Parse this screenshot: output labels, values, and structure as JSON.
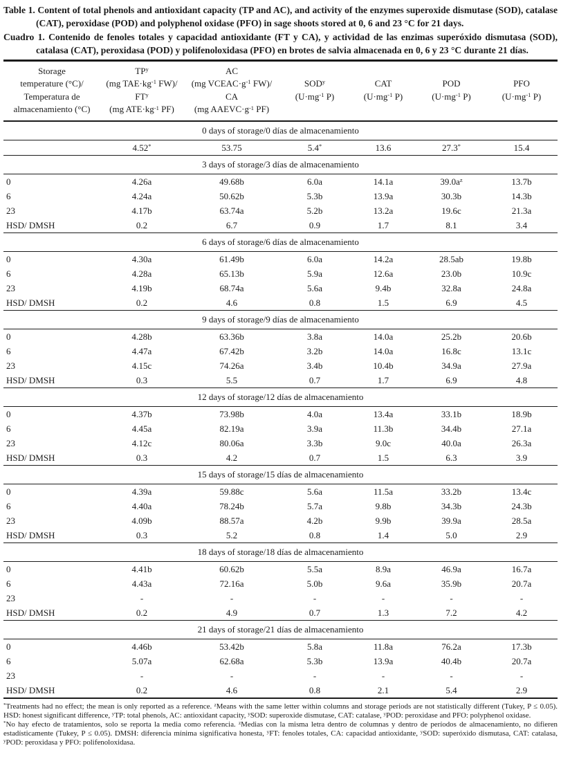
{
  "caption": {
    "en_label": "Table 1.",
    "en_text": "Content of total phenols and antioxidant capacity (TP and AC), and activity of the enzymes superoxide dismutase (SOD), catalase (CAT), peroxidase (POD) and polyphenol oxidase (PFO) in sage shoots stored at 0, 6 and 23 °C for 21 days.",
    "es_label": "Cuadro 1.",
    "es_text": "Contenido de fenoles totales y capacidad antioxidante (FT y CA), y actividad de las enzimas superóxido dismutasa (SOD), catalasa (CAT),  peroxidasa (POD) y polifenoloxidasa (PFO) en brotes de salvia almacenada en 0, 6 y 23 °C durante 21 días."
  },
  "table": {
    "columns": [
      "Storage\ntemperature (°C)/\nTemperatura de\nalmacenamiento (°C)",
      "TP^{y}\n(mg TAE·kg^{-1} FW)/\nFT^{y}\n(mg ATE·kg^{-1} PF)",
      "AC\n(mg VCEAC·g^{-1} FW)/\nCA\n(mg AAEVC·g^{-1} PF)",
      "SOD^{y}\n(U·mg^{-1} P)",
      "CAT\n(U·mg^{-1} P)",
      "POD\n(U·mg^{-1} P)",
      "PFO\n(U·mg^{-1} P)"
    ],
    "sections": [
      {
        "header": "0 days of storage/0 días de almacenamiento",
        "rows": [
          {
            "label": "",
            "values": [
              "4.52^{*}",
              "53.75",
              "5.4^{*}",
              "13.6",
              "27.3^{*}",
              "15.4"
            ]
          }
        ]
      },
      {
        "header": "3 days of storage/3 días de almacenamiento",
        "rows": [
          {
            "label": "0",
            "values": [
              "4.26a",
              "49.68b",
              "6.0a",
              "14.1a",
              "39.0a^{z}",
              "13.7b"
            ]
          },
          {
            "label": "6",
            "values": [
              "4.24a",
              "50.62b",
              "5.3b",
              "13.9a",
              "30.3b",
              "14.3b"
            ]
          },
          {
            "label": "23",
            "values": [
              "4.17b",
              "63.74a",
              "5.2b",
              "13.2a",
              "19.6c",
              "21.3a"
            ]
          },
          {
            "label": "HSD/ DMSH",
            "values": [
              "0.2",
              "6.7",
              "0.9",
              "1.7",
              "8.1",
              "3.4"
            ]
          }
        ]
      },
      {
        "header": "6 days of storage/6 días de almacenamiento",
        "rows": [
          {
            "label": "0",
            "values": [
              "4.30a",
              "61.49b",
              "6.0a",
              "14.2a",
              "28.5ab",
              "19.8b"
            ]
          },
          {
            "label": "6",
            "values": [
              "4.28a",
              "65.13b",
              "5.9a",
              "12.6a",
              "23.0b",
              "10.9c"
            ]
          },
          {
            "label": "23",
            "values": [
              "4.19b",
              "68.74a",
              "5.6a",
              "9.4b",
              "32.8a",
              "24.8a"
            ]
          },
          {
            "label": "HSD/ DMSH",
            "values": [
              "0.2",
              "4.6",
              "0.8",
              "1.5",
              "6.9",
              "4.5"
            ]
          }
        ]
      },
      {
        "header": "9 days of storage/9 días de almacenamiento",
        "rows": [
          {
            "label": "0",
            "values": [
              "4.28b",
              "63.36b",
              "3.8a",
              "14.0a",
              "25.2b",
              "20.6b"
            ]
          },
          {
            "label": "6",
            "values": [
              "4.47a",
              "67.42b",
              "3.2b",
              "14.0a",
              "16.8c",
              "13.1c"
            ]
          },
          {
            "label": "23",
            "values": [
              "4.15c",
              "74.26a",
              "3.4b",
              "10.4b",
              "34.9a",
              "27.9a"
            ]
          },
          {
            "label": "HSD/ DMSH",
            "values": [
              "0.3",
              "5.5",
              "0.7",
              "1.7",
              "6.9",
              "4.8"
            ]
          }
        ]
      },
      {
        "header": "12 days of storage/12 días de almacenamiento",
        "rows": [
          {
            "label": "0",
            "values": [
              "4.37b",
              "73.98b",
              "4.0a",
              "13.4a",
              "33.1b",
              "18.9b"
            ]
          },
          {
            "label": "6",
            "values": [
              "4.45a",
              "82.19a",
              "3.9a",
              "11.3b",
              "34.4b",
              "27.1a"
            ]
          },
          {
            "label": "23",
            "values": [
              "4.12c",
              "80.06a",
              "3.3b",
              "9.0c",
              "40.0a",
              "26.3a"
            ]
          },
          {
            "label": "HSD/ DMSH",
            "values": [
              "0.3",
              "4.2",
              "0.7",
              "1.5",
              "6.3",
              "3.9"
            ]
          }
        ]
      },
      {
        "header": "15 days of storage/15 días de almacenamiento",
        "rows": [
          {
            "label": "0",
            "values": [
              "4.39a",
              "59.88c",
              "5.6a",
              "11.5a",
              "33.2b",
              "13.4c"
            ]
          },
          {
            "label": "6",
            "values": [
              "4.40a",
              "78.24b",
              "5.7a",
              "9.8b",
              "34.3b",
              "24.3b"
            ]
          },
          {
            "label": "23",
            "values": [
              "4.09b",
              "88.57a",
              "4.2b",
              "9.9b",
              "39.9a",
              "28.5a"
            ]
          },
          {
            "label": "HSD/ DMSH",
            "values": [
              "0.3",
              "5.2",
              "0.8",
              "1.4",
              "5.0",
              "2.9"
            ]
          }
        ]
      },
      {
        "header": "18 days of storage/18 días de almacenamiento",
        "rows": [
          {
            "label": "0",
            "values": [
              "4.41b",
              "60.62b",
              "5.5a",
              "8.9a",
              "46.9a",
              "16.7a"
            ]
          },
          {
            "label": "6",
            "values": [
              "4.43a",
              "72.16a",
              "5.0b",
              "9.6a",
              "35.9b",
              "20.7a"
            ]
          },
          {
            "label": "23",
            "values": [
              "-",
              "-",
              "-",
              "-",
              "-",
              "-"
            ]
          },
          {
            "label": "HSD/ DMSH",
            "values": [
              "0.2",
              "4.9",
              "0.7",
              "1.3",
              "7.2",
              "4.2"
            ]
          }
        ]
      },
      {
        "header": "21 days of storage/21 días de almacenamiento",
        "rows": [
          {
            "label": "0",
            "values": [
              "4.46b",
              "53.42b",
              "5.8a",
              "11.8a",
              "76.2a",
              "17.3b"
            ]
          },
          {
            "label": "6",
            "values": [
              "5.07a",
              "62.68a",
              "5.3b",
              "13.9a",
              "40.4b",
              "20.7a"
            ]
          },
          {
            "label": "23",
            "values": [
              "-",
              "-",
              "-",
              "-",
              "-",
              "-"
            ]
          },
          {
            "label": "HSD/ DMSH",
            "values": [
              "0.2",
              "4.6",
              "0.8",
              "2.1",
              "5.4",
              "2.9"
            ]
          }
        ]
      }
    ]
  },
  "footnotes": {
    "en": "^{*}Treatments had no effect; the mean is only reported as a reference. ^{z}Means with the same letter within columns and storage periods are not statistically different (Tukey, P ≤ 0.05). HSD: honest significant difference, ^{y}TP: total phenols, AC: antioxidant capacity, ^{y}SOD: superoxide dismutase, CAT: catalase, ^{y}POD: peroxidase and PFO: polyphenol oxidase.",
    "es": "^{*}No hay efecto de tratamientos, solo se reporta la media como referencia. ^{z}Medias con la misma letra dentro de columnas y dentro de períodos de almacenamiento, no difieren estadísticamente (Tukey, P ≤ 0.05). DMSH: diferencia mínima significativa honesta, ^{y}FT: fenoles totales, CA: capacidad antioxidante, ^{y}SOD: superóxido dismutasa, CAT: catalasa, ^{y}POD: peroxidasa y PFO: polifenoloxidasa."
  }
}
